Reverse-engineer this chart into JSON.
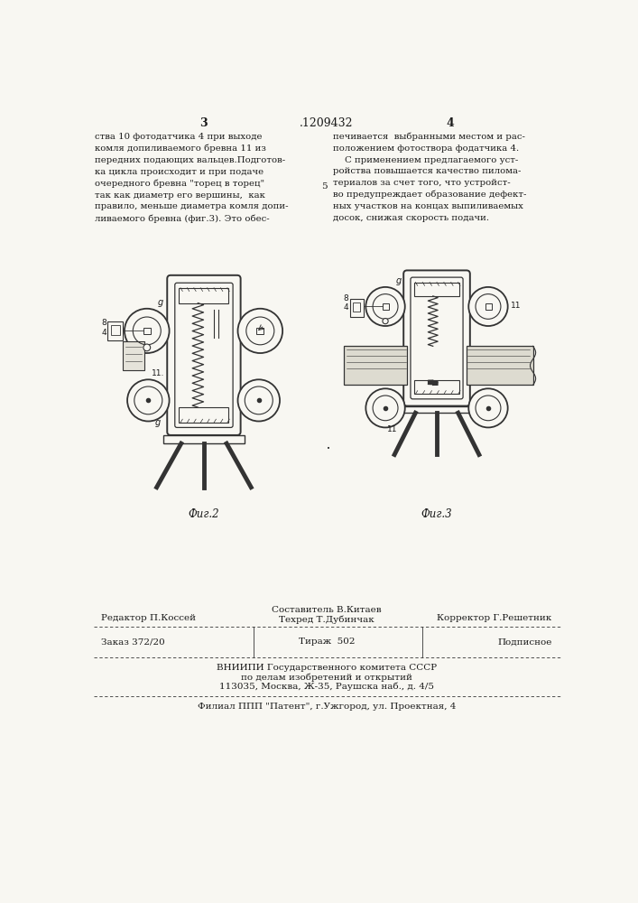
{
  "bg_color": "#f8f7f2",
  "text_color": "#1a1a1a",
  "page_num_left": "3",
  "page_num_center": ".1209432",
  "page_num_right": "4",
  "col_left_text": "ства 10 фотодатчика 4 при выходе\nкомля допиливаемого бревна 11 из\nпередних подающих вальцев.Подготов-\nка цикла происходит и при подаче\nочередного бревна \"торец в торец\"\nтак как диаметр его вершины,  как\nправило, меньше диаметра комля допи-\nливаемого бревна (фиг.3). Это обес-",
  "col_right_text": "печивается  выбранными местом и рас-\nположением фотоствора фодатчика 4.\n    С применением предлагаемого уст-\nройства повышается качество пилома-\nтериалов за счет того, что устройст-\nво предупреждает образование дефект-\nных участков на концах выпиливаемых\nдосок, снижая скорость подачи.",
  "fig2_caption": "Фиг.2",
  "fig3_caption": "Фиг.3",
  "footer_editor": "Редактор П.Коссей",
  "footer_author": "Составитель В.Китаев",
  "footer_techred": "Техред Т.Дубинчак",
  "footer_corrector": "Корректор Г.Решетник",
  "footer_order": "Заказ 372/20",
  "footer_tirazh": "Тираж  502",
  "footer_podpisnoe": "Подписное",
  "footer_org1": "ВНИИПИ Государственного комитета СССР",
  "footer_org2": "по делам изобретений и открытий",
  "footer_org3": "113035, Москва, Ж-35, Раушска наб., д. 4/5",
  "footer_filial": "Филиал ППП \"Патент\", г.Ужгород, ул. Проектная, 4",
  "line_color": "#333333",
  "num_5_text": "5"
}
